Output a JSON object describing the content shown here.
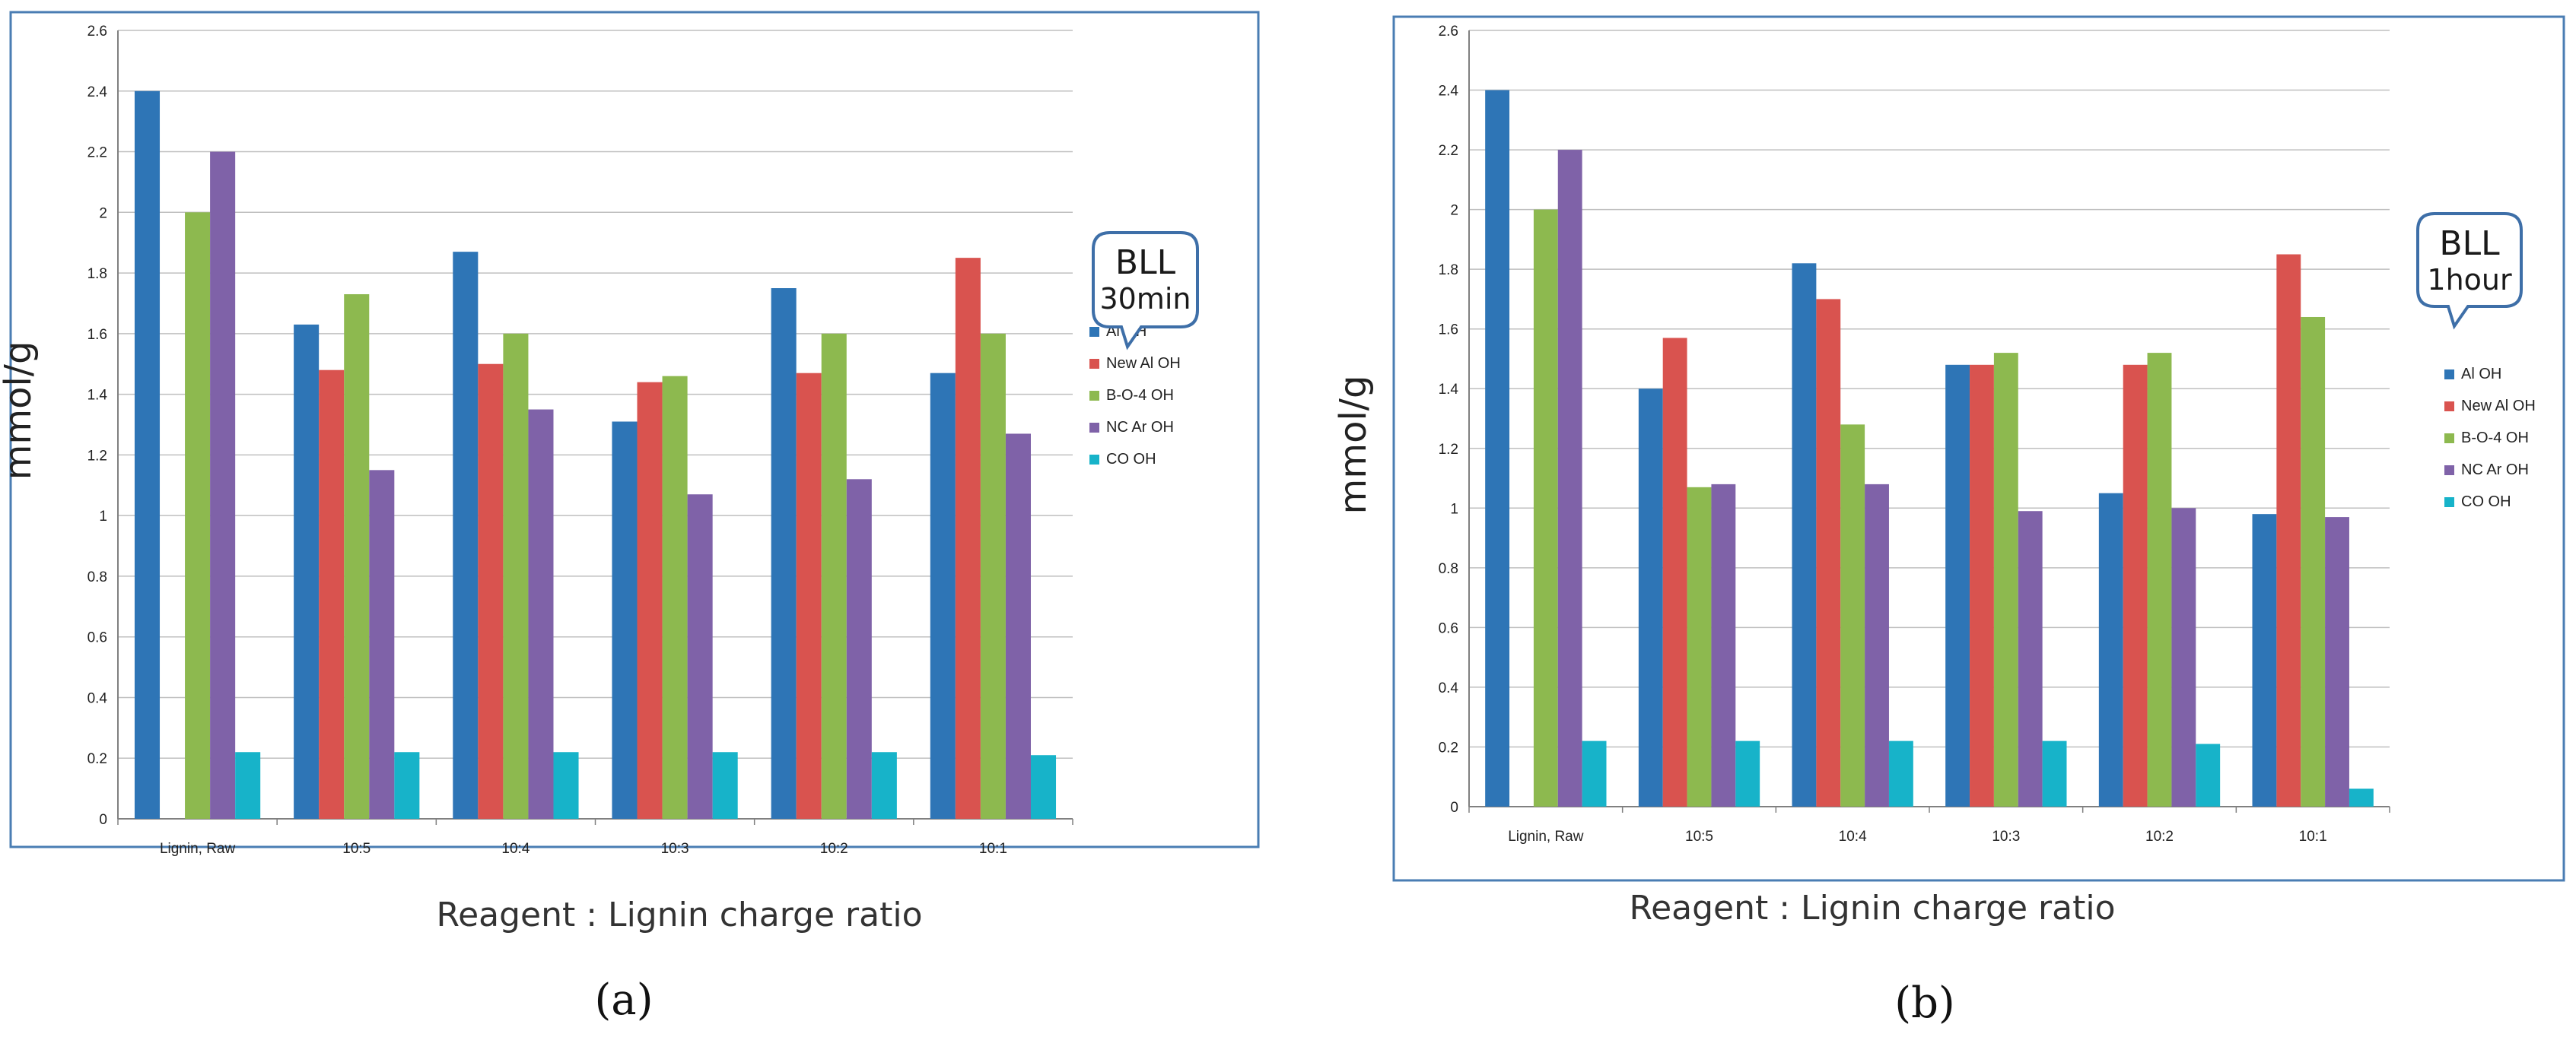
{
  "chart_data": [
    {
      "type": "bar",
      "panel_label": "a",
      "callout": {
        "line1": "BLL",
        "line2": "30min"
      },
      "ylabel": "mmol/g",
      "xlabel": "Reagent : Lignin charge ratio",
      "ylim": [
        0,
        2.6
      ],
      "yticks": [
        "0",
        "0.2",
        "0.4",
        "0.6",
        "0.8",
        "1",
        "1.2",
        "1.4",
        "1.6",
        "1.8",
        "2",
        "2.2",
        "2.4",
        "2.6"
      ],
      "categories": [
        "Lignin, Raw",
        "10:5",
        "10:4",
        "10:3",
        "10:2",
        "10:1"
      ],
      "legend_position": "right",
      "series": [
        {
          "name": "Al OH",
          "color": "#2E75B6",
          "values": [
            2.4,
            1.63,
            1.87,
            1.31,
            1.75,
            1.47
          ]
        },
        {
          "name": "New Al OH",
          "color": "#D9534F",
          "values": [
            0,
            1.48,
            1.5,
            1.44,
            1.47,
            1.85
          ]
        },
        {
          "name": "B-O-4 OH",
          "color": "#8DB94F",
          "values": [
            2.0,
            1.73,
            1.6,
            1.46,
            1.6,
            1.6
          ]
        },
        {
          "name": "NC Ar OH",
          "color": "#7F62A8",
          "values": [
            2.2,
            1.15,
            1.35,
            1.07,
            1.12,
            1.27
          ]
        },
        {
          "name": "CO OH",
          "color": "#17B3C9",
          "values": [
            0.22,
            0.22,
            0.22,
            0.22,
            0.22,
            0.21
          ]
        }
      ]
    },
    {
      "type": "bar",
      "panel_label": "b",
      "callout": {
        "line1": "BLL",
        "line2": "1hour"
      },
      "ylabel": "mmol/g",
      "xlabel": "Reagent : Lignin charge ratio",
      "ylim": [
        0,
        2.6
      ],
      "yticks": [
        "0",
        "0.2",
        "0.4",
        "0.6",
        "0.8",
        "1",
        "1.2",
        "1.4",
        "1.6",
        "1.8",
        "2",
        "2.2",
        "2.4",
        "2.6"
      ],
      "categories": [
        "Lignin, Raw",
        "10:5",
        "10:4",
        "10:3",
        "10:2",
        "10:1"
      ],
      "legend_position": "right",
      "series": [
        {
          "name": "Al OH",
          "color": "#2E75B6",
          "values": [
            2.4,
            1.4,
            1.82,
            1.48,
            1.05,
            0.98
          ]
        },
        {
          "name": "New Al OH",
          "color": "#D9534F",
          "values": [
            0,
            1.57,
            1.7,
            1.48,
            1.48,
            1.85
          ]
        },
        {
          "name": "B-O-4 OH",
          "color": "#8DB94F",
          "values": [
            2.0,
            1.07,
            1.28,
            1.52,
            1.52,
            1.64
          ]
        },
        {
          "name": "NC Ar OH",
          "color": "#7F62A8",
          "values": [
            2.2,
            1.08,
            1.08,
            0.99,
            1.0,
            0.97
          ]
        },
        {
          "name": "CO OH",
          "color": "#17B3C9",
          "values": [
            0.22,
            0.22,
            0.22,
            0.22,
            0.21,
            0.06
          ]
        }
      ]
    }
  ],
  "captions": {
    "a": "(a)",
    "b": "(b)"
  },
  "frame_color": "#4A7DB3",
  "grid_color": "#BFBFBF",
  "axis_color": "#808080"
}
